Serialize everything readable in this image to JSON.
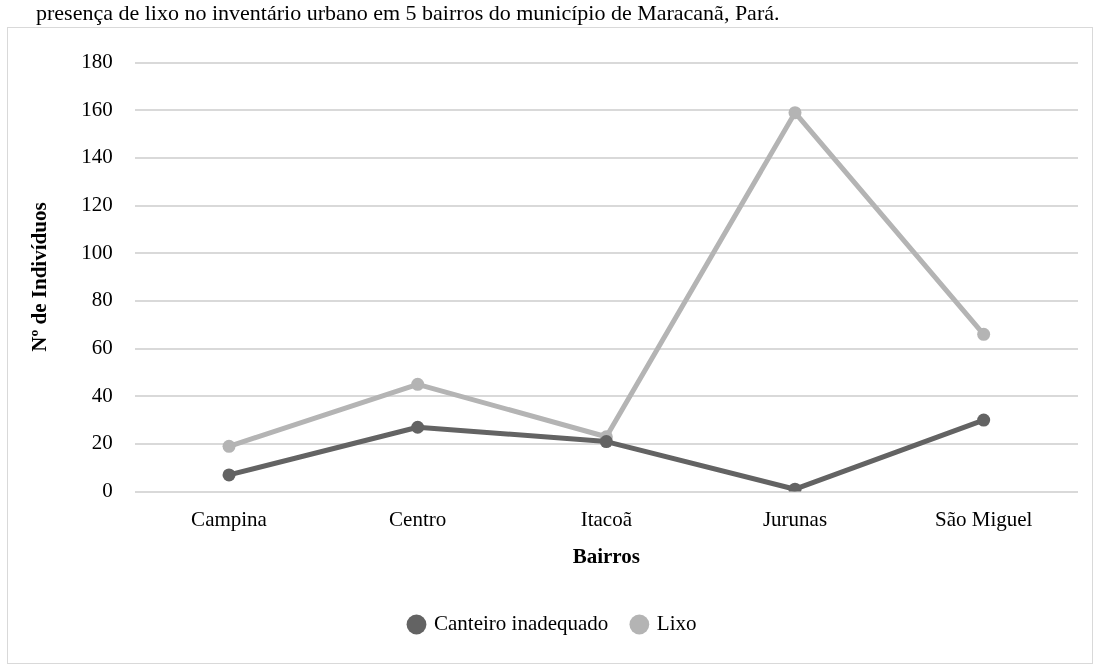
{
  "chart_data": {
    "type": "line",
    "title": "presença de lixo no inventário urbano em 5 bairros do município de Maracanã, Pará.",
    "xlabel": "Bairros",
    "ylabel": "Nº de Indivíduos",
    "categories": [
      "Campina",
      "Centro",
      "Itacoã",
      "Jurunas",
      "São Miguel"
    ],
    "series": [
      {
        "name": "Canteiro inadequado",
        "color": "#636363",
        "values": [
          7,
          27,
          21,
          1,
          30
        ]
      },
      {
        "name": "Lixo",
        "color": "#b4b4b4",
        "values": [
          19,
          45,
          23,
          159,
          66
        ]
      }
    ],
    "ylim": [
      0,
      180
    ],
    "yticks": [
      0,
      20,
      40,
      60,
      80,
      100,
      120,
      140,
      160,
      180
    ],
    "grid": "y",
    "legend": "bottom",
    "marker": "circle",
    "line_style": "solid"
  }
}
